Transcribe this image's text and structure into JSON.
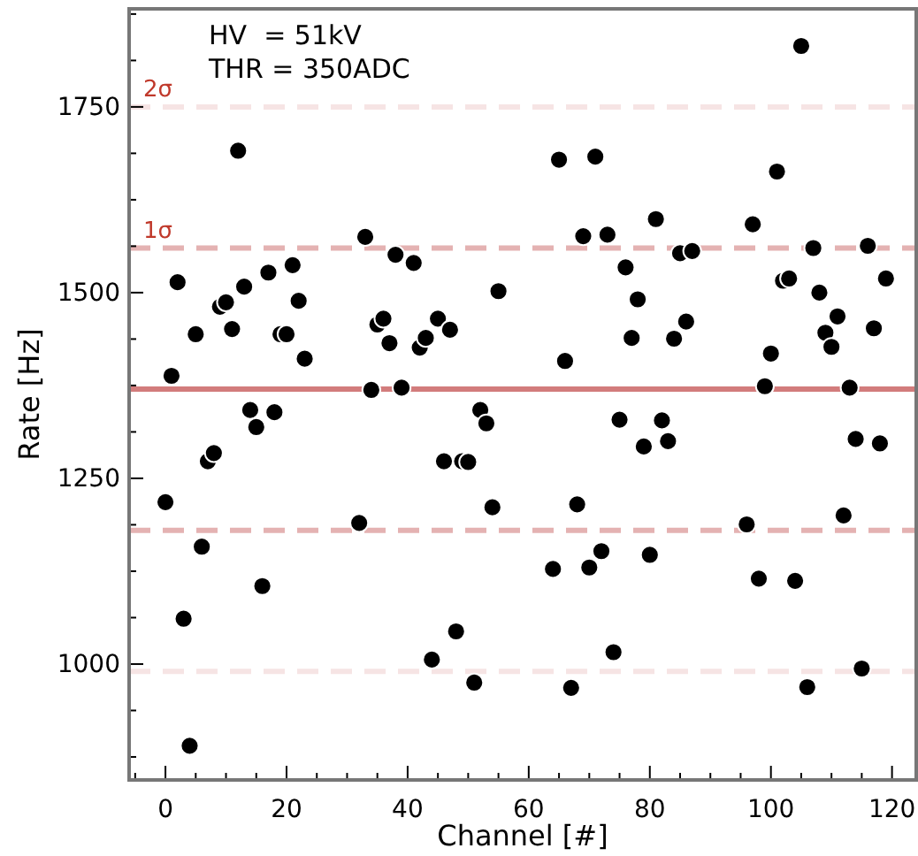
{
  "chart_data": {
    "type": "scatter",
    "xlabel": "Channel [#]",
    "ylabel": "Rate [Hz]",
    "annotations": [
      "HV  = 51kV",
      "THR = 350ADC"
    ],
    "xlim": [
      -6,
      124
    ],
    "ylim": [
      844,
      1882
    ],
    "xticks": [
      {
        "value": -5,
        "label": null
      },
      0,
      {
        "value": 5,
        "label": null
      },
      {
        "value": 10,
        "label": null
      },
      {
        "value": 15,
        "label": null
      },
      20,
      {
        "value": 25,
        "label": null
      },
      {
        "value": 30,
        "label": null
      },
      {
        "value": 35,
        "label": null
      },
      40,
      {
        "value": 45,
        "label": null
      },
      {
        "value": 50,
        "label": null
      },
      {
        "value": 55,
        "label": null
      },
      60,
      {
        "value": 65,
        "label": null
      },
      {
        "value": 70,
        "label": null
      },
      {
        "value": 75,
        "label": null
      },
      80,
      {
        "value": 85,
        "label": null
      },
      {
        "value": 90,
        "label": null
      },
      {
        "value": 95,
        "label": null
      },
      100,
      {
        "value": 105,
        "label": null
      },
      {
        "value": 110,
        "label": null
      },
      {
        "value": 115,
        "label": null
      },
      120
    ],
    "yticks": [
      {
        "value": 875,
        "label": null
      },
      {
        "value": 937.5,
        "label": null
      },
      1000,
      {
        "value": 1062.5,
        "label": null
      },
      {
        "value": 1125,
        "label": null
      },
      {
        "value": 1187.5,
        "label": null
      },
      1250,
      {
        "value": 1312.5,
        "label": null
      },
      {
        "value": 1375,
        "label": null
      },
      {
        "value": 1437.5,
        "label": null
      },
      1500,
      {
        "value": 1562.5,
        "label": null
      },
      {
        "value": 1625,
        "label": null
      },
      {
        "value": 1687.5,
        "label": null
      },
      1750,
      {
        "value": 1812.5,
        "label": null
      },
      {
        "value": 1875,
        "label": null
      }
    ],
    "grid": false,
    "marker": "circle",
    "ref_lines": [
      {
        "axis": "y",
        "value": 1750,
        "label": "2σ",
        "color": "#f6e4e4",
        "line_style": "dashed"
      },
      {
        "axis": "y",
        "value": 990,
        "color": "#f6e4e4",
        "line_style": "dashed"
      },
      {
        "axis": "y",
        "value": 1560,
        "label": "1σ",
        "color": "#e4b2b2",
        "line_style": "dashed"
      },
      {
        "axis": "y",
        "value": 1180,
        "color": "#e4b2b2",
        "line_style": "dashed"
      },
      {
        "axis": "y",
        "value": 1370,
        "color": "#d27c7c",
        "line_style": "solid"
      }
    ],
    "series": [
      {
        "color": "#000000",
        "x": [
          0,
          1,
          2,
          3,
          4,
          5,
          6,
          7,
          8,
          9,
          10,
          11,
          12,
          13,
          14,
          15,
          16,
          17,
          18,
          19,
          20,
          21,
          22,
          23,
          32,
          33,
          34,
          35,
          36,
          37,
          38,
          39,
          41,
          42,
          43,
          44,
          45,
          46,
          47,
          48,
          49,
          50,
          51,
          52,
          53,
          54,
          55,
          64,
          65,
          66,
          67,
          68,
          69,
          70,
          71,
          72,
          73,
          74,
          75,
          76,
          77,
          78,
          79,
          80,
          81,
          82,
          83,
          84,
          85,
          86,
          87,
          96,
          97,
          98,
          99,
          100,
          101,
          102,
          103,
          104,
          105,
          106,
          107,
          108,
          109,
          110,
          111,
          112,
          113,
          114,
          115,
          116,
          117,
          118,
          119
        ],
        "values": [
          1218,
          1388,
          1514,
          1061,
          890,
          1444,
          1158,
          1273,
          1284,
          1481,
          1487,
          1451,
          1691,
          1508,
          1342,
          1319,
          1105,
          1527,
          1339,
          1444,
          1444,
          1537,
          1489,
          1411,
          1190,
          1575,
          1369,
          1457,
          1465,
          1432,
          1551,
          1372,
          1540,
          1426,
          1439,
          1006,
          1465,
          1273,
          1450,
          1044,
          1273,
          1272,
          975,
          1342,
          1324,
          1211,
          1502,
          1128,
          1679,
          1408,
          968,
          1215,
          1576,
          1130,
          1683,
          1152,
          1578,
          1016,
          1329,
          1534,
          1439,
          1491,
          1293,
          1147,
          1599,
          1328,
          1300,
          1438,
          1553,
          1461,
          1556,
          1188,
          1592,
          1115,
          1374,
          1418,
          1663,
          1516,
          1519,
          1112,
          1832,
          969,
          1560,
          1500,
          1446,
          1427,
          1468,
          1200,
          1372,
          1303,
          994,
          1563,
          1452,
          1297,
          1519
        ]
      }
    ]
  }
}
